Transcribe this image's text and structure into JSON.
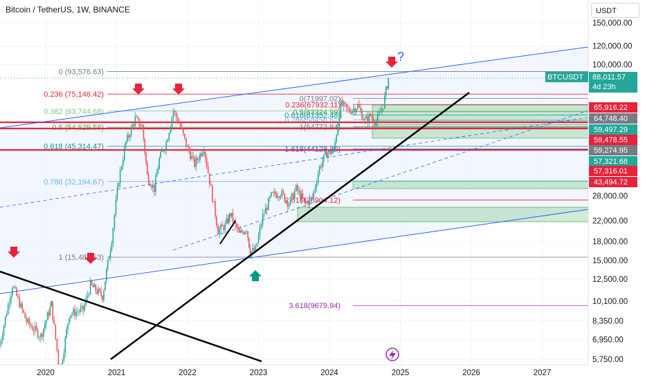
{
  "header": {
    "title": "Bitcoin / TetherUS, 1W, BINANCE",
    "currency": "USDT"
  },
  "colors": {
    "fib": "#787b86",
    "red": "#e5243b",
    "green": "#26a69a",
    "blue": "#2962ff",
    "purple": "#9c27b0"
  },
  "chart_data": {
    "type": "candlestick",
    "title": "Bitcoin / TetherUS, 1W, BINANCE",
    "y_scale": "log",
    "ylim": [
      5500,
      160000
    ],
    "xlim": [
      2019.35,
      2028.0
    ],
    "y_ticks": [
      "150,000.00",
      "120,000.00",
      "100,000.00",
      "28,000.00",
      "22,000.00",
      "18,000.00",
      "15,000.00",
      "12,500.00",
      "10,100.00",
      "8,350.00",
      "6,950.00",
      "5,750.00"
    ],
    "x_ticks": [
      "2020",
      "2021",
      "2022",
      "2023",
      "2024",
      "2025",
      "2026",
      "2027"
    ],
    "price_path": [
      [
        2019.35,
        6200
      ],
      [
        2019.55,
        11800
      ],
      [
        2019.75,
        8300
      ],
      [
        2019.95,
        7200
      ],
      [
        2020.1,
        9800
      ],
      [
        2020.22,
        5000
      ],
      [
        2020.35,
        8900
      ],
      [
        2020.55,
        9300
      ],
      [
        2020.65,
        11800
      ],
      [
        2020.82,
        10600
      ],
      [
        2020.95,
        18500
      ],
      [
        2021.05,
        33000
      ],
      [
        2021.15,
        47000
      ],
      [
        2021.28,
        59000
      ],
      [
        2021.38,
        55000
      ],
      [
        2021.45,
        34000
      ],
      [
        2021.55,
        30000
      ],
      [
        2021.62,
        40000
      ],
      [
        2021.72,
        47000
      ],
      [
        2021.82,
        64000
      ],
      [
        2021.9,
        57000
      ],
      [
        2022.0,
        46000
      ],
      [
        2022.12,
        38000
      ],
      [
        2022.25,
        45000
      ],
      [
        2022.35,
        30000
      ],
      [
        2022.45,
        20000
      ],
      [
        2022.55,
        21000
      ],
      [
        2022.62,
        23500
      ],
      [
        2022.75,
        19300
      ],
      [
        2022.85,
        20500
      ],
      [
        2022.9,
        16200
      ],
      [
        2022.98,
        16600
      ],
      [
        2023.08,
        23000
      ],
      [
        2023.2,
        28000
      ],
      [
        2023.33,
        29000
      ],
      [
        2023.45,
        26000
      ],
      [
        2023.55,
        30000
      ],
      [
        2023.68,
        26000
      ],
      [
        2023.78,
        27500
      ],
      [
        2023.88,
        37000
      ],
      [
        2023.98,
        42500
      ],
      [
        2024.08,
        43000
      ],
      [
        2024.18,
        68000
      ],
      [
        2024.3,
        64000
      ],
      [
        2024.42,
        67000
      ],
      [
        2024.52,
        58000
      ],
      [
        2024.6,
        61000
      ],
      [
        2024.68,
        57000
      ],
      [
        2024.78,
        68000
      ],
      [
        2024.85,
        88011.57
      ]
    ],
    "fib_left": {
      "levels": [
        {
          "label": "0 (93,576.63)",
          "value": 93576.63,
          "color": "#787b86"
        },
        {
          "label": "0.236 (75,146.42)",
          "value": 75146.42,
          "color": "#e5243b"
        },
        {
          "label": "0.382 (63,744.68)",
          "value": 63744.68,
          "color": "#81c784"
        },
        {
          "label": "0.5 (54,529.58)",
          "value": 54529.58,
          "color": "#4caf50"
        },
        {
          "label": "0.618 (45,314.47)",
          "value": 45314.47,
          "color": "#089981"
        },
        {
          "label": "0.786 (32,194.67)",
          "value": 32194.67,
          "color": "#64b5f6"
        },
        {
          "label": "1 (15,482.53)",
          "value": 15482.53,
          "color": "#787b86"
        }
      ]
    },
    "fib_right": {
      "levels": [
        {
          "label": "0(71997.02)",
          "value": 71997.02,
          "color": "#787b86"
        },
        {
          "label": "0.236(67932.11)",
          "value": 67932.11,
          "color": "#e5243b"
        },
        {
          "label": "0.5(63324.99)",
          "value": 63324.99,
          "color": "#4caf50"
        },
        {
          "label": "0.618(61352.48)",
          "value": 61352.48,
          "color": "#089981"
        },
        {
          "label": "0.786(58456.61)",
          "value": 58456.61,
          "color": "#64b5f6"
        },
        {
          "label": "1(54772.84)",
          "value": 54772.84,
          "color": "#787b86"
        },
        {
          "label": "1.618(44128.30)",
          "value": 44128.3,
          "color": "#2962ff"
        },
        {
          "label": "2.618(26904.12)",
          "value": 26904.12,
          "color": "#e5243b"
        },
        {
          "label": "3.618(9679.94)",
          "value": 9679.94,
          "color": "#9c27b0"
        }
      ]
    },
    "price_labels": [
      {
        "text": "BTCUSDT",
        "sub": "88,011.57",
        "sub2": "4d 23h",
        "value": 88011.57,
        "bg": "#26a69a"
      },
      {
        "text": "65,916.22",
        "value": 65916.22,
        "bg": "#e5243b"
      },
      {
        "text": "64,748.40",
        "value": 64748.4,
        "bg": "#787b86"
      },
      {
        "text": "59,497.29",
        "value": 59497.29,
        "bg": "#26a69a"
      },
      {
        "text": "59,478.55",
        "value": 59478.55,
        "bg": "#e5243b"
      },
      {
        "text": "59,274.95",
        "value": 59274.95,
        "bg": "#787b86"
      },
      {
        "text": "57,321.68",
        "value": 57321.68,
        "bg": "#26a69a"
      },
      {
        "text": "57,316.01",
        "value": 57316.01,
        "bg": "#e5243b"
      },
      {
        "text": "43,494.72",
        "value": 43494.72,
        "bg": "#e5243b"
      }
    ],
    "annotations": [
      {
        "text": "?"
      }
    ]
  }
}
